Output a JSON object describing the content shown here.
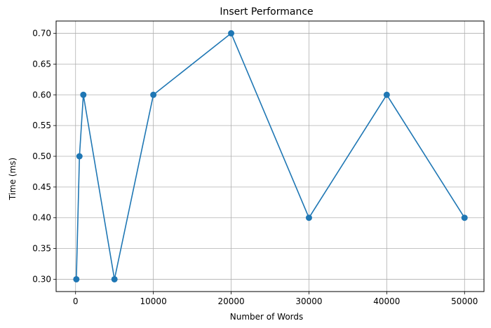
{
  "chart_data": {
    "type": "line",
    "title": "Insert Performance",
    "xlabel": "Number of Words",
    "ylabel": "Time (ms)",
    "x": [
      100,
      500,
      1000,
      5000,
      10000,
      20000,
      30000,
      40000,
      50000
    ],
    "series": [
      {
        "values": [
          0.3,
          0.5,
          0.6,
          0.3,
          0.6,
          0.7,
          0.4,
          0.6,
          0.4
        ],
        "color": "#1f77b4"
      }
    ],
    "xlim": [
      -2500,
      52500
    ],
    "ylim": [
      0.28,
      0.72
    ],
    "xticks": [
      0,
      10000,
      20000,
      30000,
      40000,
      50000
    ],
    "xtick_labels": [
      "0",
      "10000",
      "20000",
      "30000",
      "40000",
      "50000"
    ],
    "yticks": [
      0.3,
      0.35,
      0.4,
      0.45,
      0.5,
      0.55,
      0.6,
      0.65,
      0.7
    ],
    "ytick_labels": [
      "0.30",
      "0.35",
      "0.40",
      "0.45",
      "0.50",
      "0.55",
      "0.60",
      "0.65",
      "0.70"
    ],
    "grid": true,
    "marker": "circle"
  }
}
